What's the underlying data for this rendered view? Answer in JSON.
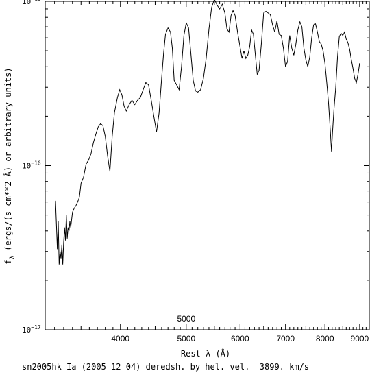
{
  "chart_data": {
    "type": "line",
    "xlabel": "Rest λ (Å)",
    "ylabel": "f_λ (ergs/(s cm**2 Å) or arbitrary units)",
    "ylabel_sub": "λ",
    "ylabel_rest": " (ergs/(s cm**2 Å) or arbitrary units)",
    "xlim": [
      3100,
      9300
    ],
    "ylim": [
      1e-17,
      1e-15
    ],
    "yscale": "log",
    "xscale": "log",
    "grid": false,
    "x_ticks": [
      4000,
      5000,
      6000,
      7000,
      8000,
      9000
    ],
    "x_tick_labels": [
      "4000",
      "5000",
      "6000",
      "7000",
      "8000",
      "9000"
    ],
    "y_tick_labels": [
      {
        "value": 1e-15,
        "mantissa": "10",
        "exp": "−15"
      },
      {
        "value": 1e-16,
        "mantissa": "10",
        "exp": "−16"
      },
      {
        "value": 1e-17,
        "mantissa": "10",
        "exp": "−17"
      }
    ],
    "annotation": "5000",
    "annotation_x": 5000,
    "annotation_y": 1.12e-17,
    "series": [
      {
        "values": [
          [
            3210,
            6.1e-17
          ],
          [
            3220,
            4.3e-17
          ],
          [
            3230,
            3.1e-17
          ],
          [
            3240,
            4.6e-17
          ],
          [
            3250,
            2.5e-17
          ],
          [
            3260,
            3e-17
          ],
          [
            3270,
            2.7e-17
          ],
          [
            3280,
            3.3e-17
          ],
          [
            3290,
            2.5e-17
          ],
          [
            3300,
            3.4e-17
          ],
          [
            3310,
            4.2e-17
          ],
          [
            3320,
            3.5e-17
          ],
          [
            3330,
            5e-17
          ],
          [
            3340,
            3.6e-17
          ],
          [
            3350,
            4.2e-17
          ],
          [
            3360,
            4e-17
          ],
          [
            3370,
            4.6e-17
          ],
          [
            3380,
            4.2e-17
          ],
          [
            3400,
            5.2e-17
          ],
          [
            3420,
            5.5e-17
          ],
          [
            3440,
            5.7e-17
          ],
          [
            3460,
            6e-17
          ],
          [
            3480,
            6.4e-17
          ],
          [
            3500,
            7.8e-17
          ],
          [
            3530,
            8.5e-17
          ],
          [
            3560,
            1.02e-16
          ],
          [
            3590,
            1.08e-16
          ],
          [
            3620,
            1.18e-16
          ],
          [
            3650,
            1.38e-16
          ],
          [
            3680,
            1.55e-16
          ],
          [
            3710,
            1.72e-16
          ],
          [
            3740,
            1.8e-16
          ],
          [
            3770,
            1.75e-16
          ],
          [
            3800,
            1.5e-16
          ],
          [
            3830,
            1.15e-16
          ],
          [
            3860,
            9.2e-17
          ],
          [
            3890,
            1.5e-16
          ],
          [
            3920,
            2.1e-16
          ],
          [
            3960,
            2.6e-16
          ],
          [
            3990,
            2.9e-16
          ],
          [
            4020,
            2.7e-16
          ],
          [
            4050,
            2.3e-16
          ],
          [
            4080,
            2.15e-16
          ],
          [
            4120,
            2.35e-16
          ],
          [
            4160,
            2.5e-16
          ],
          [
            4200,
            2.35e-16
          ],
          [
            4240,
            2.5e-16
          ],
          [
            4280,
            2.6e-16
          ],
          [
            4320,
            2.9e-16
          ],
          [
            4360,
            3.2e-16
          ],
          [
            4400,
            3.1e-16
          ],
          [
            4440,
            2.5e-16
          ],
          [
            4480,
            2e-16
          ],
          [
            4520,
            1.6e-16
          ],
          [
            4560,
            2.1e-16
          ],
          [
            4600,
            3.4e-16
          ],
          [
            4630,
            4.8e-16
          ],
          [
            4660,
            6.3e-16
          ],
          [
            4700,
            6.9e-16
          ],
          [
            4740,
            6.5e-16
          ],
          [
            4770,
            5.2e-16
          ],
          [
            4800,
            3.3e-16
          ],
          [
            4840,
            3.1e-16
          ],
          [
            4880,
            2.9e-16
          ],
          [
            4920,
            4e-16
          ],
          [
            4960,
            6.2e-16
          ],
          [
            5000,
            7.4e-16
          ],
          [
            5040,
            6.9e-16
          ],
          [
            5080,
            4.8e-16
          ],
          [
            5120,
            3.3e-16
          ],
          [
            5160,
            2.85e-16
          ],
          [
            5200,
            2.8e-16
          ],
          [
            5250,
            2.9e-16
          ],
          [
            5300,
            3.4e-16
          ],
          [
            5350,
            4.5e-16
          ],
          [
            5400,
            6.8e-16
          ],
          [
            5450,
            9.2e-16
          ],
          [
            5500,
            1.03e-15
          ],
          [
            5550,
            9.5e-16
          ],
          [
            5600,
            9e-16
          ],
          [
            5650,
            9.6e-16
          ],
          [
            5700,
            8.5e-16
          ],
          [
            5740,
            6.8e-16
          ],
          [
            5780,
            6.5e-16
          ],
          [
            5820,
            8.2e-16
          ],
          [
            5860,
            8.8e-16
          ],
          [
            5900,
            8.2e-16
          ],
          [
            5950,
            6.5e-16
          ],
          [
            6000,
            5.3e-16
          ],
          [
            6040,
            4.5e-16
          ],
          [
            6080,
            5e-16
          ],
          [
            6120,
            4.5e-16
          ],
          [
            6160,
            4.7e-16
          ],
          [
            6200,
            5.3e-16
          ],
          [
            6240,
            6.7e-16
          ],
          [
            6280,
            6.3e-16
          ],
          [
            6320,
            4.7e-16
          ],
          [
            6360,
            3.6e-16
          ],
          [
            6400,
            3.8e-16
          ],
          [
            6450,
            5.5e-16
          ],
          [
            6500,
            8.5e-16
          ],
          [
            6550,
            8.7e-16
          ],
          [
            6600,
            8.5e-16
          ],
          [
            6650,
            8.3e-16
          ],
          [
            6700,
            7.2e-16
          ],
          [
            6750,
            6.5e-16
          ],
          [
            6800,
            7.6e-16
          ],
          [
            6850,
            6.3e-16
          ],
          [
            6900,
            6.2e-16
          ],
          [
            6950,
            5.2e-16
          ],
          [
            7000,
            4e-16
          ],
          [
            7050,
            4.3e-16
          ],
          [
            7100,
            6.2e-16
          ],
          [
            7150,
            5.2e-16
          ],
          [
            7200,
            4.7e-16
          ],
          [
            7250,
            5.5e-16
          ],
          [
            7300,
            6.7e-16
          ],
          [
            7350,
            7.5e-16
          ],
          [
            7400,
            7e-16
          ],
          [
            7450,
            5.2e-16
          ],
          [
            7500,
            4.4e-16
          ],
          [
            7550,
            4e-16
          ],
          [
            7600,
            4.6e-16
          ],
          [
            7650,
            6e-16
          ],
          [
            7700,
            7.2e-16
          ],
          [
            7750,
            7.3e-16
          ],
          [
            7800,
            6.5e-16
          ],
          [
            7850,
            5.7e-16
          ],
          [
            7900,
            5.5e-16
          ],
          [
            7950,
            5e-16
          ],
          [
            8000,
            4.2e-16
          ],
          [
            8050,
            3.2e-16
          ],
          [
            8100,
            2.4e-16
          ],
          [
            8150,
            1.6e-16
          ],
          [
            8180,
            1.22e-16
          ],
          [
            8210,
            1.6e-16
          ],
          [
            8250,
            2.2e-16
          ],
          [
            8300,
            3e-16
          ],
          [
            8350,
            4.6e-16
          ],
          [
            8400,
            6.1e-16
          ],
          [
            8450,
            6.4e-16
          ],
          [
            8500,
            6.2e-16
          ],
          [
            8550,
            6.5e-16
          ],
          [
            8600,
            5.9e-16
          ],
          [
            8650,
            5.6e-16
          ],
          [
            8700,
            5.1e-16
          ],
          [
            8750,
            4.4e-16
          ],
          [
            8800,
            3.9e-16
          ],
          [
            8850,
            3.4e-16
          ],
          [
            8900,
            3.2e-16
          ],
          [
            8950,
            3.6e-16
          ],
          [
            9000,
            4.2e-16
          ]
        ]
      }
    ]
  },
  "caption": "sn2005hk Ia (2005 12 04) deredsh. by hel. vel.  3899. km/s"
}
